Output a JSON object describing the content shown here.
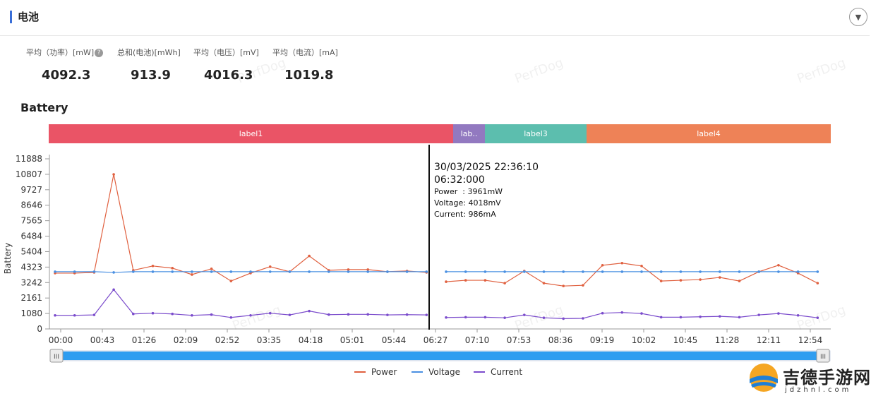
{
  "section": {
    "title": "电池"
  },
  "metrics": [
    {
      "label": "平均（功率）[mW]",
      "value": "4092.3",
      "help": "?"
    },
    {
      "label": "总和(电池)[mWh]",
      "value": "913.9"
    },
    {
      "label": "平均（电压）[mV]",
      "value": "4016.3"
    },
    {
      "label": "平均（电流）[mA]",
      "value": "1019.8"
    }
  ],
  "chart_title": "Battery",
  "labels": [
    {
      "text": "label1",
      "color": "#ea5466"
    },
    {
      "text": "lab..",
      "color": "#9279c0"
    },
    {
      "text": "label3",
      "color": "#5cbeae"
    },
    {
      "text": "label4",
      "color": "#ee8257"
    }
  ],
  "tooltip": {
    "datetime": "30/03/2025 22:36:10",
    "time": "06:32:000",
    "lines": [
      "Power  : 3961mW",
      "Voltage: 4018mV",
      "Current: 986mA"
    ]
  },
  "watermark": "PerfDog",
  "logo": {
    "text": "吉德手游网",
    "sub": "jdzhnl.com"
  },
  "chart_data": {
    "type": "line",
    "ylabel": "Battery",
    "ylim": [
      0,
      11888
    ],
    "yticks": [
      "11888",
      "10807",
      "9727",
      "8646",
      "7565",
      "6484",
      "5404",
      "4323",
      "3242",
      "2161",
      "1080",
      "0"
    ],
    "xticks": [
      "00:00",
      "00:43",
      "01:26",
      "02:09",
      "02:52",
      "03:35",
      "04:18",
      "05:01",
      "05:44",
      "06:27",
      "07:10",
      "07:53",
      "08:36",
      "09:19",
      "10:02",
      "10:45",
      "11:28",
      "12:11",
      "12:54"
    ],
    "xrange": [
      0,
      19.1
    ],
    "gap": [
      9.6,
      9.6
    ],
    "series": [
      {
        "name": "Power",
        "color": "#e0603f",
        "segments": [
          [
            [
              0,
              3900
            ],
            [
              0.5,
              3900
            ],
            [
              1,
              3950
            ],
            [
              1.5,
              10800
            ],
            [
              2,
              4100
            ],
            [
              2.5,
              4400
            ],
            [
              3,
              4250
            ],
            [
              3.5,
              3800
            ],
            [
              4,
              4200
            ],
            [
              4.5,
              3350
            ],
            [
              5,
              3900
            ],
            [
              5.5,
              4350
            ],
            [
              6,
              4000
            ],
            [
              6.5,
              5100
            ],
            [
              7,
              4100
            ],
            [
              7.5,
              4150
            ],
            [
              8,
              4150
            ],
            [
              8.5,
              4000
            ],
            [
              9,
              4050
            ],
            [
              9.5,
              3950
            ]
          ],
          [
            [
              10,
              3300
            ],
            [
              10.5,
              3400
            ],
            [
              11,
              3400
            ],
            [
              11.5,
              3200
            ],
            [
              12,
              4050
            ],
            [
              12.5,
              3200
            ],
            [
              13,
              3000
            ],
            [
              13.5,
              3050
            ],
            [
              14,
              4450
            ],
            [
              14.5,
              4600
            ],
            [
              15,
              4400
            ],
            [
              15.5,
              3350
            ],
            [
              16,
              3400
            ],
            [
              16.5,
              3450
            ],
            [
              17,
              3600
            ],
            [
              17.5,
              3350
            ],
            [
              18,
              4000
            ],
            [
              18.5,
              4450
            ],
            [
              19,
              3900
            ],
            [
              19.5,
              3200
            ]
          ]
        ]
      },
      {
        "name": "Voltage",
        "color": "#4a90e2",
        "segments": [
          [
            [
              0,
              4000
            ],
            [
              0.5,
              4000
            ],
            [
              1,
              4000
            ],
            [
              1.5,
              3950
            ],
            [
              2,
              4000
            ],
            [
              2.5,
              4000
            ],
            [
              3,
              4000
            ],
            [
              3.5,
              4000
            ],
            [
              4,
              4000
            ],
            [
              4.5,
              4000
            ],
            [
              5,
              4000
            ],
            [
              5.5,
              4000
            ],
            [
              6,
              4000
            ],
            [
              6.5,
              4000
            ],
            [
              7,
              4000
            ],
            [
              7.5,
              4000
            ],
            [
              8,
              4000
            ],
            [
              8.5,
              4000
            ],
            [
              9,
              4000
            ],
            [
              9.5,
              4000
            ]
          ],
          [
            [
              10,
              4000
            ],
            [
              10.5,
              4000
            ],
            [
              11,
              4000
            ],
            [
              11.5,
              4000
            ],
            [
              12,
              4000
            ],
            [
              12.5,
              4000
            ],
            [
              13,
              4000
            ],
            [
              13.5,
              4000
            ],
            [
              14,
              4000
            ],
            [
              14.5,
              4000
            ],
            [
              15,
              4000
            ],
            [
              15.5,
              4000
            ],
            [
              16,
              4000
            ],
            [
              16.5,
              4000
            ],
            [
              17,
              4000
            ],
            [
              17.5,
              4000
            ],
            [
              18,
              4000
            ],
            [
              18.5,
              4000
            ],
            [
              19,
              4000
            ],
            [
              19.5,
              4000
            ]
          ]
        ]
      },
      {
        "name": "Current",
        "color": "#7b4ccc",
        "segments": [
          [
            [
              0,
              950
            ],
            [
              0.5,
              950
            ],
            [
              1,
              980
            ],
            [
              1.5,
              2750
            ],
            [
              2,
              1050
            ],
            [
              2.5,
              1100
            ],
            [
              3,
              1050
            ],
            [
              3.5,
              950
            ],
            [
              4,
              1000
            ],
            [
              4.5,
              800
            ],
            [
              5,
              950
            ],
            [
              5.5,
              1100
            ],
            [
              6,
              980
            ],
            [
              6.5,
              1250
            ],
            [
              7,
              1000
            ],
            [
              7.5,
              1020
            ],
            [
              8,
              1020
            ],
            [
              8.5,
              980
            ],
            [
              9,
              1000
            ],
            [
              9.5,
              980
            ]
          ],
          [
            [
              10,
              800
            ],
            [
              10.5,
              820
            ],
            [
              11,
              820
            ],
            [
              11.5,
              780
            ],
            [
              12,
              980
            ],
            [
              12.5,
              780
            ],
            [
              13,
              720
            ],
            [
              13.5,
              740
            ],
            [
              14,
              1100
            ],
            [
              14.5,
              1150
            ],
            [
              15,
              1080
            ],
            [
              15.5,
              820
            ],
            [
              16,
              820
            ],
            [
              16.5,
              850
            ],
            [
              17,
              880
            ],
            [
              17.5,
              820
            ],
            [
              18,
              980
            ],
            [
              18.5,
              1080
            ],
            [
              19,
              950
            ],
            [
              19.5,
              780
            ]
          ]
        ]
      }
    ]
  }
}
